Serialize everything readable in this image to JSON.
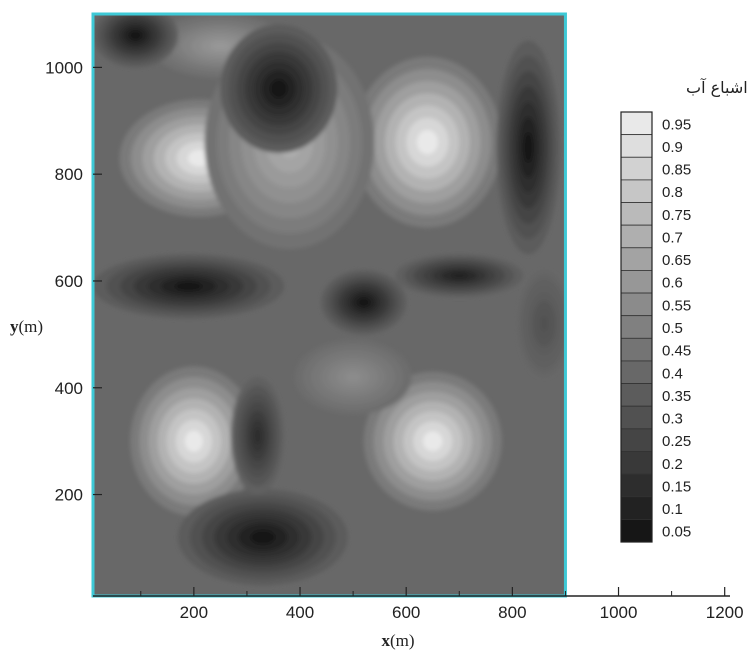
{
  "colors": {
    "frame": "#3ec9d6",
    "axis": "#222222",
    "dark_fill": "#0a0a0a",
    "light_fill": "#f4f4f4"
  },
  "chart_data": {
    "type": "heatmap",
    "title": "",
    "xlabel": "x",
    "xlabel_unit": "(m)",
    "ylabel": "y",
    "ylabel_unit": "(m)",
    "xlim": [
      10,
      1210
    ],
    "ylim": [
      10,
      1100
    ],
    "plot_x_range": [
      10,
      900
    ],
    "x_ticks": [
      200,
      400,
      600,
      800,
      1000,
      1200
    ],
    "y_ticks": [
      200,
      400,
      600,
      800,
      1000
    ],
    "grid": false,
    "colormap": "grayscale",
    "legend": {
      "title": "اشباع آب",
      "placement": "right",
      "levels": [
        0.95,
        0.9,
        0.85,
        0.8,
        0.75,
        0.7,
        0.65,
        0.6,
        0.55,
        0.5,
        0.45,
        0.4,
        0.35,
        0.3,
        0.25,
        0.2,
        0.15,
        0.1,
        0.05
      ]
    },
    "field": {
      "background": 0.4,
      "features": [
        {
          "x": 210,
          "y": 830,
          "value": 0.95,
          "rx": 150,
          "ry": 110
        },
        {
          "x": 640,
          "y": 860,
          "value": 0.95,
          "rx": 140,
          "ry": 160
        },
        {
          "x": 200,
          "y": 300,
          "value": 0.95,
          "rx": 120,
          "ry": 140
        },
        {
          "x": 650,
          "y": 300,
          "value": 0.95,
          "rx": 130,
          "ry": 130
        },
        {
          "x": 380,
          "y": 860,
          "value": 0.7,
          "rx": 160,
          "ry": 200
        },
        {
          "x": 250,
          "y": 1040,
          "value": 0.6,
          "rx": 130,
          "ry": 60
        },
        {
          "x": 500,
          "y": 420,
          "value": 0.55,
          "rx": 110,
          "ry": 70
        },
        {
          "x": 90,
          "y": 1060,
          "value": 0.05,
          "rx": 80,
          "ry": 60
        },
        {
          "x": 360,
          "y": 960,
          "value": 0.05,
          "rx": 110,
          "ry": 120
        },
        {
          "x": 830,
          "y": 850,
          "value": 0.05,
          "rx": 60,
          "ry": 200
        },
        {
          "x": 190,
          "y": 590,
          "value": 0.05,
          "rx": 180,
          "ry": 60
        },
        {
          "x": 520,
          "y": 560,
          "value": 0.05,
          "rx": 80,
          "ry": 60
        },
        {
          "x": 330,
          "y": 120,
          "value": 0.05,
          "rx": 160,
          "ry": 90
        },
        {
          "x": 320,
          "y": 310,
          "value": 0.15,
          "rx": 50,
          "ry": 110
        },
        {
          "x": 700,
          "y": 610,
          "value": 0.1,
          "rx": 120,
          "ry": 40
        },
        {
          "x": 860,
          "y": 520,
          "value": 0.3,
          "rx": 50,
          "ry": 100
        }
      ]
    }
  }
}
